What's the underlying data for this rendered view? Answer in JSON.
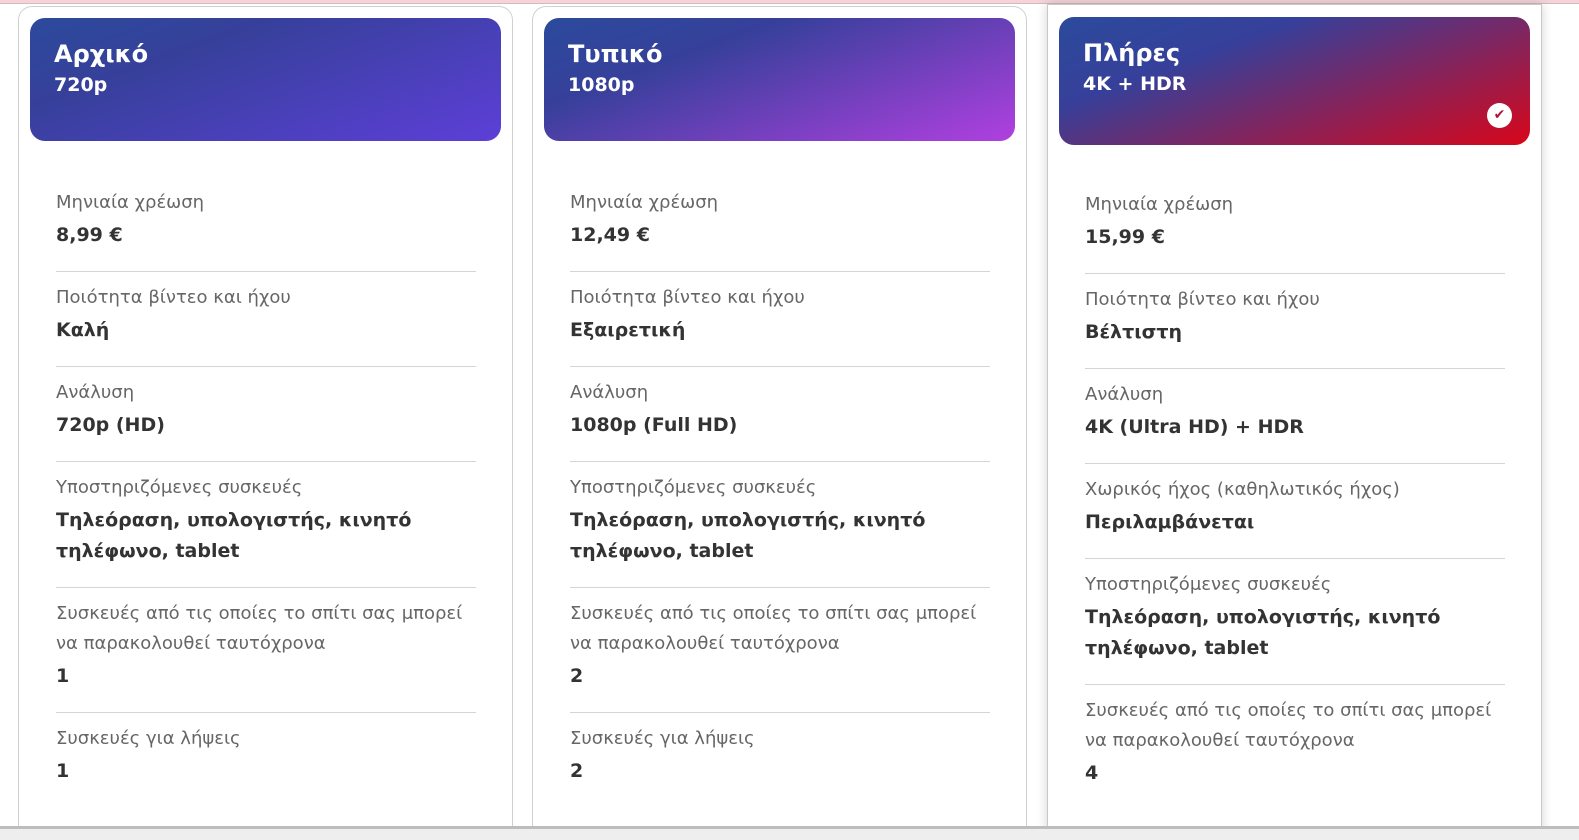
{
  "plans": [
    {
      "name": "Αρχικό",
      "resolution_short": "720p",
      "selected": false,
      "gradient": [
        "#2b4a9c",
        "#5d3fd8"
      ],
      "rows": [
        {
          "label": "Μηνιαία χρέωση",
          "value": "8,99 €"
        },
        {
          "label": "Ποιότητα βίντεο και ήχου",
          "value": "Καλή"
        },
        {
          "label": "Ανάλυση",
          "value": "720p (HD)"
        },
        {
          "label": "Υποστηριζόμενες συσκευές",
          "value": "Τηλεόραση, υπολογιστής, κινητό τηλέφωνο, tablet"
        },
        {
          "label": "Συσκευές από τις οποίες το σπίτι σας μπορεί να παρακολουθεί ταυτόχρονα",
          "value": "1"
        },
        {
          "label": "Συσκευές για λήψεις",
          "value": "1"
        }
      ]
    },
    {
      "name": "Τυπικό",
      "resolution_short": "1080p",
      "selected": false,
      "gradient": [
        "#2b4a9c",
        "#b040e0"
      ],
      "rows": [
        {
          "label": "Μηνιαία χρέωση",
          "value": "12,49 €"
        },
        {
          "label": "Ποιότητα βίντεο και ήχου",
          "value": "Εξαιρετική"
        },
        {
          "label": "Ανάλυση",
          "value": "1080p (Full HD)"
        },
        {
          "label": "Υποστηριζόμενες συσκευές",
          "value": "Τηλεόραση, υπολογιστής, κινητό τηλέφωνο, tablet"
        },
        {
          "label": "Συσκευές από τις οποίες το σπίτι σας μπορεί να παρακολουθεί ταυτόχρονα",
          "value": "2"
        },
        {
          "label": "Συσκευές για λήψεις",
          "value": "2"
        }
      ]
    },
    {
      "name": "Πλήρες",
      "resolution_short": "4K + HDR",
      "selected": true,
      "gradient": [
        "#2b4a9c",
        "#d8061a"
      ],
      "rows": [
        {
          "label": "Μηνιαία χρέωση",
          "value": "15,99 €"
        },
        {
          "label": "Ποιότητα βίντεο και ήχου",
          "value": "Βέλτιστη"
        },
        {
          "label": "Ανάλυση",
          "value": "4K (Ultra HD) + HDR"
        },
        {
          "label": "Χωρικός ήχος (καθηλωτικός ήχος)",
          "value": "Περιλαμβάνεται"
        },
        {
          "label": "Υποστηριζόμενες συσκευές",
          "value": "Τηλεόραση, υπολογιστής, κινητό τηλέφωνο, tablet"
        },
        {
          "label": "Συσκευές από τις οποίες το σπίτι σας μπορεί να παρακολουθεί ταυτόχρονα",
          "value": "4"
        }
      ]
    }
  ]
}
